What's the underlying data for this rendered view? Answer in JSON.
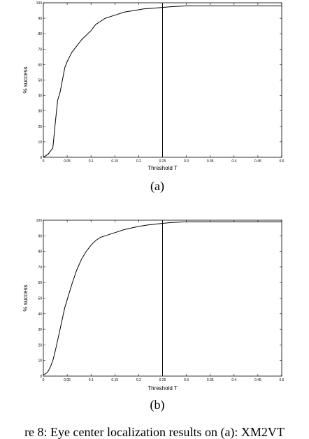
{
  "chart_data": [
    {
      "type": "line",
      "panel_label": "(a)",
      "xlabel": "Threshold T",
      "ylabel": "% success",
      "xlim": [
        0,
        0.5
      ],
      "ylim": [
        0,
        100
      ],
      "xticks": [
        "0",
        "0.05",
        "0.1",
        "0.15",
        "0.2",
        "0.25",
        "0.3",
        "0.35",
        "0.4",
        "0.45",
        "0.5"
      ],
      "yticks": [
        "0",
        "10",
        "20",
        "30",
        "40",
        "50",
        "60",
        "70",
        "80",
        "90",
        "100"
      ],
      "grid": false,
      "marker_line_x": 0.25,
      "series": [
        {
          "x": [
            0,
            0.01,
            0.02,
            0.025,
            0.03,
            0.035,
            0.04,
            0.045,
            0.05,
            0.055,
            0.06,
            0.07,
            0.08,
            0.09,
            0.1,
            0.11,
            0.12,
            0.13,
            0.15,
            0.17,
            0.19,
            0.21,
            0.23,
            0.25,
            0.27,
            0.3,
            0.35,
            0.4,
            0.45,
            0.5
          ],
          "y": [
            0,
            2,
            6,
            22,
            37,
            42,
            50,
            58,
            62,
            65,
            68,
            72,
            76,
            79,
            82,
            86,
            88,
            90,
            92,
            94,
            95,
            96,
            96.5,
            97,
            97.5,
            98,
            98,
            98,
            98,
            98
          ]
        }
      ]
    },
    {
      "type": "line",
      "panel_label": "(b)",
      "xlabel": "Threshold T",
      "ylabel": "% success",
      "xlim": [
        0,
        0.5
      ],
      "ylim": [
        0,
        100
      ],
      "xticks": [
        "0",
        "0.05",
        "0.1",
        "0.15",
        "0.2",
        "0.25",
        "0.3",
        "0.35",
        "0.4",
        "0.45",
        "0.5"
      ],
      "yticks": [
        "0",
        "10",
        "20",
        "30",
        "40",
        "50",
        "60",
        "70",
        "80",
        "90",
        "100"
      ],
      "grid": false,
      "marker_line_x": 0.25,
      "series": [
        {
          "x": [
            0,
            0.005,
            0.01,
            0.015,
            0.02,
            0.025,
            0.03,
            0.035,
            0.04,
            0.045,
            0.05,
            0.06,
            0.07,
            0.08,
            0.09,
            0.1,
            0.11,
            0.12,
            0.13,
            0.15,
            0.17,
            0.2,
            0.22,
            0.25,
            0.27,
            0.3,
            0.35,
            0.4,
            0.45,
            0.5
          ],
          "y": [
            1,
            1.5,
            3,
            6,
            10,
            16,
            23,
            30,
            37,
            44,
            49,
            59,
            68,
            75,
            80,
            84,
            87,
            89,
            90,
            92,
            94,
            96,
            97,
            98,
            98.5,
            99,
            99,
            99,
            99,
            99
          ]
        }
      ]
    }
  ],
  "caption": "re 8: Eye center localization results on (a): XM2VT"
}
